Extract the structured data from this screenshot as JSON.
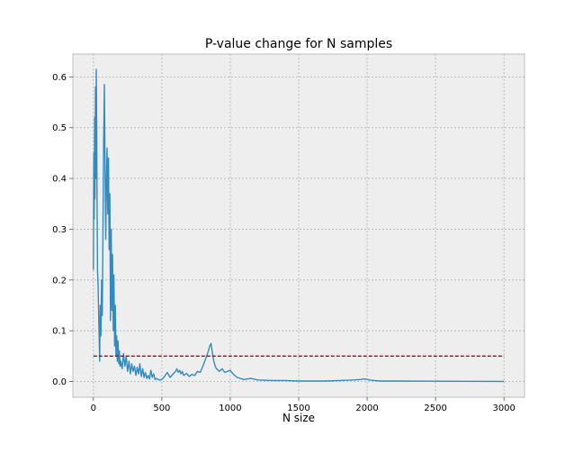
{
  "chart_data": {
    "type": "line",
    "title": "P-value change for N samples",
    "xlabel": "N size",
    "ylabel": "",
    "xlim": [
      -150,
      3150
    ],
    "ylim": [
      -0.031,
      0.645
    ],
    "grid": true,
    "xticks": [
      0,
      500,
      1000,
      1500,
      2000,
      2500,
      3000
    ],
    "xtick_labels": [
      "0",
      "500",
      "1000",
      "1500",
      "2000",
      "2500",
      "3000"
    ],
    "yticks": [
      0.0,
      0.1,
      0.2,
      0.3,
      0.4,
      0.5,
      0.6
    ],
    "ytick_labels": [
      "0.0",
      "0.1",
      "0.2",
      "0.3",
      "0.4",
      "0.5",
      "0.6"
    ],
    "series": [
      {
        "color": "#348abd",
        "style": "solid",
        "x": [
          0,
          3,
          6,
          9,
          12,
          15,
          18,
          21,
          24,
          27,
          30,
          34,
          38,
          42,
          46,
          50,
          55,
          60,
          65,
          70,
          75,
          80,
          85,
          90,
          95,
          100,
          105,
          110,
          115,
          120,
          125,
          130,
          135,
          140,
          145,
          150,
          155,
          160,
          165,
          170,
          175,
          180,
          185,
          190,
          195,
          200,
          210,
          220,
          230,
          240,
          250,
          260,
          270,
          280,
          290,
          300,
          310,
          320,
          330,
          340,
          350,
          360,
          370,
          380,
          390,
          400,
          410,
          420,
          430,
          440,
          450,
          460,
          480,
          500,
          520,
          540,
          560,
          580,
          600,
          610,
          620,
          630,
          640,
          650,
          660,
          680,
          700,
          720,
          740,
          760,
          780,
          800,
          820,
          840,
          850,
          860,
          870,
          880,
          890,
          900,
          920,
          940,
          960,
          980,
          1000,
          1020,
          1050,
          1100,
          1150,
          1200,
          1300,
          1400,
          1500,
          1600,
          1700,
          1800,
          1900,
          1950,
          1980,
          2000,
          2020,
          2050,
          2100,
          2200,
          2500,
          3000
        ],
        "y": [
          0.22,
          0.45,
          0.32,
          0.52,
          0.36,
          0.58,
          0.4,
          0.615,
          0.5,
          0.35,
          0.22,
          0.19,
          0.14,
          0.09,
          0.04,
          0.15,
          0.09,
          0.2,
          0.13,
          0.31,
          0.47,
          0.585,
          0.43,
          0.28,
          0.4,
          0.46,
          0.33,
          0.44,
          0.26,
          0.37,
          0.12,
          0.3,
          0.14,
          0.25,
          0.1,
          0.21,
          0.07,
          0.15,
          0.05,
          0.09,
          0.04,
          0.08,
          0.035,
          0.06,
          0.03,
          0.04,
          0.025,
          0.055,
          0.03,
          0.05,
          0.02,
          0.04,
          0.015,
          0.035,
          0.02,
          0.03,
          0.012,
          0.028,
          0.015,
          0.035,
          0.01,
          0.025,
          0.008,
          0.018,
          0.006,
          0.012,
          0.005,
          0.022,
          0.008,
          0.015,
          0.004,
          0.006,
          0.003,
          0.004,
          0.01,
          0.018,
          0.008,
          0.014,
          0.02,
          0.025,
          0.018,
          0.022,
          0.015,
          0.02,
          0.012,
          0.016,
          0.01,
          0.014,
          0.012,
          0.02,
          0.018,
          0.03,
          0.045,
          0.06,
          0.07,
          0.075,
          0.055,
          0.04,
          0.03,
          0.025,
          0.02,
          0.025,
          0.018,
          0.02,
          0.022,
          0.015,
          0.008,
          0.004,
          0.006,
          0.003,
          0.002,
          0.002,
          0.001,
          0.001,
          0.001,
          0.002,
          0.003,
          0.004,
          0.005,
          0.004,
          0.003,
          0.002,
          0.001,
          0.001,
          0.0005,
          0.0003
        ]
      },
      {
        "color": "#a50026",
        "style": "dashed",
        "x": [
          0,
          3000
        ],
        "y": [
          0.05,
          0.05
        ]
      }
    ]
  }
}
